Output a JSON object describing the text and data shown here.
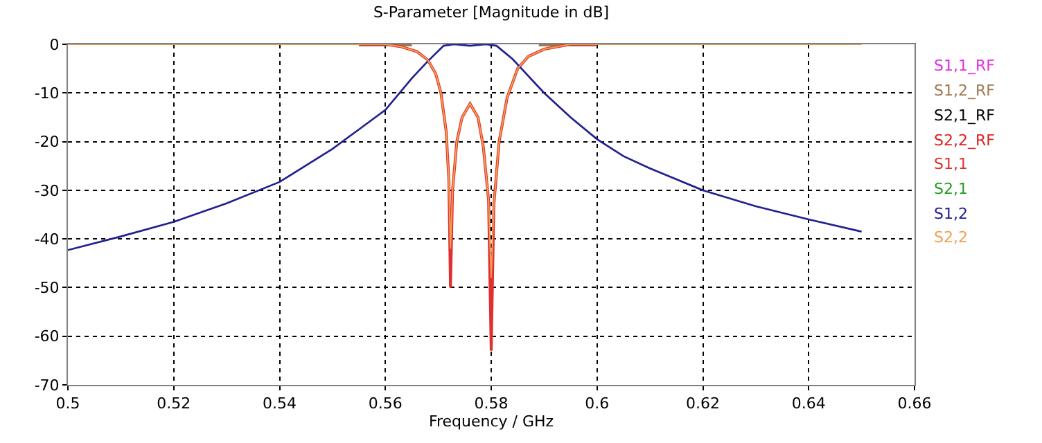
{
  "chart_data": {
    "type": "line",
    "title": "S-Parameter [Magnitude in dB]",
    "xlabel": "Frequency / GHz",
    "xlim": [
      0.5,
      0.66
    ],
    "xticks": [
      0.5,
      0.52,
      0.54,
      0.56,
      0.58,
      0.6,
      0.62,
      0.64,
      0.66
    ],
    "ylim": [
      -70,
      0
    ],
    "yticks": [
      -70,
      -60,
      -50,
      -40,
      -30,
      -20,
      -10,
      0
    ],
    "grid": true,
    "legend": "right",
    "line_style": "solid",
    "marker": "none",
    "series": [
      {
        "name": "S1,1_RF",
        "color": "#e030e0"
      },
      {
        "name": "S1,2_RF",
        "color": "#a07850",
        "x": [
          0.555,
          0.5575,
          0.56,
          0.5625,
          0.565,
          0.577,
          0.589,
          0.5925,
          0.595,
          0.5975,
          0.6
        ],
        "values": [
          0,
          0,
          0,
          0,
          0,
          null,
          0,
          0,
          0,
          0,
          0
        ]
      },
      {
        "name": "S2,1_RF",
        "color": "#000000"
      },
      {
        "name": "S2,2_RF",
        "color": "#e02020"
      },
      {
        "name": "S1,1",
        "color": "#e03030",
        "x": [
          0.555,
          0.56,
          0.563,
          0.566,
          0.568,
          0.5695,
          0.5705,
          0.5715,
          0.572,
          0.5723,
          0.5727,
          0.5735,
          0.5745,
          0.576,
          0.5775,
          0.5785,
          0.5795,
          0.58,
          0.5805,
          0.5815,
          0.583,
          0.585,
          0.587,
          0.59,
          0.595,
          0.6
        ],
        "values": [
          0,
          0,
          -0.5,
          -1.5,
          -3.2,
          -6,
          -10,
          -18,
          -28,
          -50,
          -30,
          -20,
          -15,
          -12.2,
          -15,
          -21,
          -32,
          -63,
          -33,
          -20,
          -11,
          -5,
          -2.5,
          -1,
          0,
          0
        ]
      },
      {
        "name": "S2,1",
        "color": "#20a020"
      },
      {
        "name": "S1,2",
        "color": "#202090",
        "x": [
          0.5,
          0.51,
          0.52,
          0.53,
          0.54,
          0.55,
          0.555,
          0.56,
          0.565,
          0.568,
          0.571,
          0.573,
          0.576,
          0.579,
          0.581,
          0.584,
          0.587,
          0.59,
          0.595,
          0.6,
          0.605,
          0.61,
          0.62,
          0.63,
          0.64,
          0.65
        ],
        "values": [
          -42.3,
          -39.5,
          -36.5,
          -32.7,
          -28.3,
          -21.5,
          -17.5,
          -13.5,
          -7,
          -3.5,
          -0.3,
          0,
          -0.3,
          0,
          -0.3,
          -3,
          -6.5,
          -10,
          -15,
          -19.5,
          -23,
          -25.5,
          -30,
          -33.3,
          -36,
          -38.5
        ]
      },
      {
        "name": "S2,2",
        "color": "#f0a050",
        "x": [
          0.5,
          0.52,
          0.54,
          0.55,
          0.555,
          0.56,
          0.563,
          0.566,
          0.568,
          0.5695,
          0.5705,
          0.5715,
          0.572,
          0.5723,
          0.5727,
          0.5735,
          0.5745,
          0.576,
          0.5775,
          0.5785,
          0.5795,
          0.58,
          0.5805,
          0.5815,
          0.583,
          0.585,
          0.587,
          0.59,
          0.595,
          0.6,
          0.62,
          0.64,
          0.65
        ],
        "values": [
          0,
          0,
          0,
          0,
          0,
          0,
          -0.5,
          -1.5,
          -3.2,
          -6,
          -10,
          -18,
          -28,
          -42,
          -30,
          -20,
          -15,
          -12.2,
          -15,
          -21,
          -32,
          -48,
          -33,
          -20,
          -11,
          -5,
          -2.5,
          -1,
          0,
          0,
          0,
          0,
          0
        ]
      }
    ]
  }
}
